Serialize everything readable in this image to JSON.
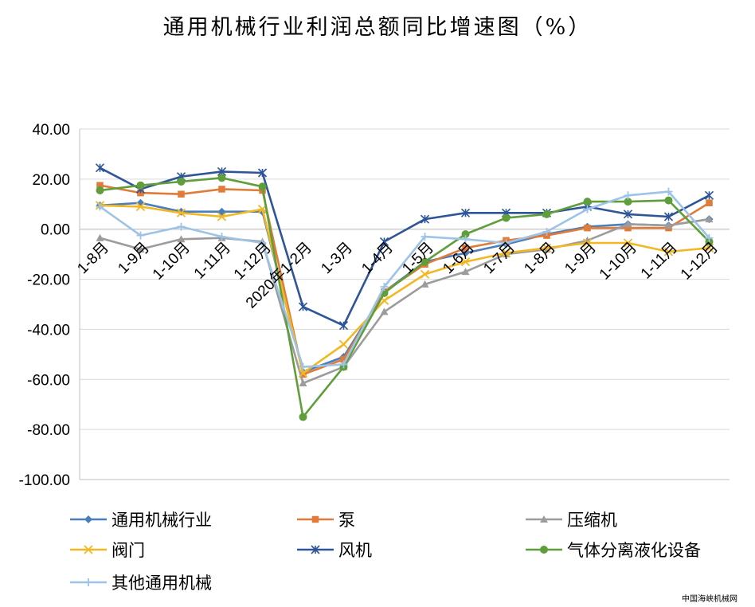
{
  "chart_data": {
    "type": "line",
    "title": "通用机械行业利润总额同比增速图（%）",
    "xlabel": "",
    "ylabel": "",
    "ylim": [
      -100,
      40
    ],
    "y_ticks": [
      "40.00",
      "20.00",
      "0.00",
      "-20.00",
      "-40.00",
      "-60.00",
      "-80.00",
      "-100.00"
    ],
    "categories": [
      "1-8月",
      "1-9月",
      "1-10月",
      "1-11月",
      "1-12月",
      "2020年1-2月",
      "1-3月",
      "1-4月",
      "1-5月",
      "1-6月",
      "1-7月",
      "1-8月",
      "1-9月",
      "1-10月",
      "1-11月",
      "1-12月"
    ],
    "grid": "horizontal",
    "legend_position": "bottom",
    "series": [
      {
        "name": "通用机械行业",
        "color": "#4a7ebb",
        "marker": "diamond",
        "values": [
          9.5,
          10.5,
          7.0,
          7.0,
          7.0,
          -57.0,
          -51.0,
          -25.0,
          -13.0,
          -9.5,
          -6.0,
          -2.0,
          1.0,
          2.0,
          1.5,
          4.0
        ]
      },
      {
        "name": "泵",
        "color": "#e07b39",
        "marker": "square",
        "values": [
          17.5,
          14.5,
          14.0,
          16.0,
          15.5,
          -58.0,
          -52.0,
          -25.0,
          -14.0,
          -7.5,
          -4.5,
          -2.5,
          0.5,
          0.5,
          0.5,
          10.5
        ]
      },
      {
        "name": "压缩机",
        "color": "#9c9c9c",
        "marker": "triangle",
        "values": [
          -3.5,
          -8.0,
          -4.0,
          -3.5,
          -5.0,
          -61.5,
          -55.0,
          -33.0,
          -22.0,
          -17.0,
          -10.0,
          -8.0,
          -4.5,
          2.0,
          1.5,
          4.0
        ]
      },
      {
        "name": "阀门",
        "color": "#f2b824",
        "marker": "x",
        "values": [
          9.5,
          9.0,
          6.5,
          5.0,
          8.0,
          -57.5,
          -46.0,
          -28.5,
          -18.0,
          -13.0,
          -9.5,
          -7.5,
          -5.5,
          -5.5,
          -9.0,
          -7.5
        ]
      },
      {
        "name": "风机",
        "color": "#2d5597",
        "marker": "star",
        "values": [
          24.5,
          16.0,
          21.0,
          23.0,
          22.5,
          -31.0,
          -38.5,
          -5.0,
          4.0,
          6.5,
          6.5,
          6.5,
          9.0,
          6.0,
          5.0,
          13.5
        ]
      },
      {
        "name": "气体分离液化设备",
        "color": "#5f9e3a",
        "marker": "circle",
        "values": [
          15.5,
          17.5,
          19.0,
          20.5,
          17.0,
          -75.0,
          -55.0,
          -25.5,
          -13.0,
          -2.0,
          4.5,
          6.0,
          11.0,
          11.0,
          11.5,
          -5.0
        ]
      },
      {
        "name": "其他通用机械",
        "color": "#9dc3e6",
        "marker": "plus",
        "values": [
          9.0,
          -2.5,
          1.0,
          -3.0,
          -5.5,
          -55.0,
          -54.0,
          -23.0,
          -3.0,
          -4.0,
          -5.5,
          -1.0,
          8.0,
          13.5,
          15.0,
          -3.5
        ]
      }
    ]
  },
  "watermark": "中国海峡机械网"
}
